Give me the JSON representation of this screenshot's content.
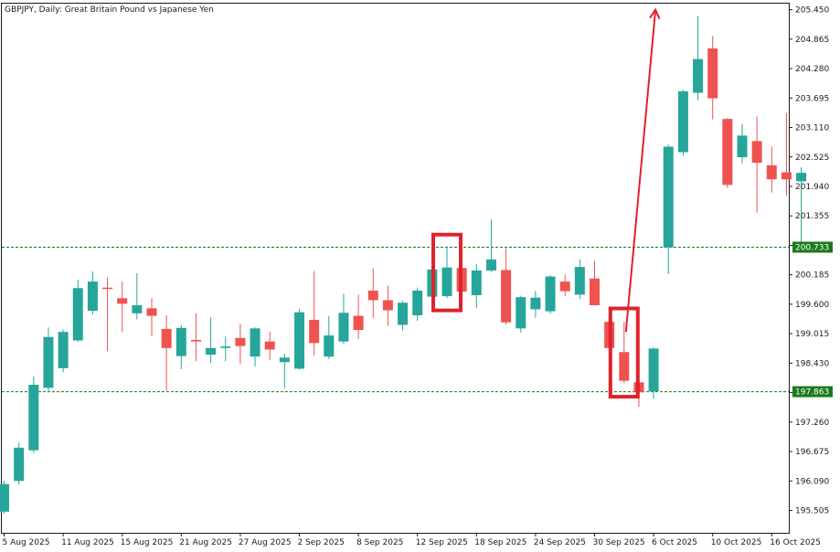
{
  "chart_title": "GBPJPY, Daily:  Great Britain Pound vs Japanese Yen",
  "chart_data": {
    "type": "candlestick",
    "symbol": "GBPJPY",
    "timeframe": "Daily",
    "description": "Great Britain Pound vs Japanese Yen",
    "ylim": [
      195.06,
      205.57
    ],
    "y_ticks": [
      "205.450",
      "204.865",
      "204.280",
      "203.695",
      "203.110",
      "202.525",
      "201.940",
      "201.355",
      "200.770",
      "200.185",
      "199.600",
      "199.015",
      "198.430",
      "197.845",
      "197.260",
      "196.675",
      "196.090",
      "195.505"
    ],
    "x_ticks": [
      {
        "label": "5 Aug 2025",
        "index": 0
      },
      {
        "label": "11 Aug 2025",
        "index": 4
      },
      {
        "label": "15 Aug 2025",
        "index": 8
      },
      {
        "label": "21 Aug 2025",
        "index": 12
      },
      {
        "label": "27 Aug 2025",
        "index": 16
      },
      {
        "label": "2 Sep 2025",
        "index": 20
      },
      {
        "label": "8 Sep 2025",
        "index": 24
      },
      {
        "label": "12 Sep 2025",
        "index": 28
      },
      {
        "label": "18 Sep 2025",
        "index": 32
      },
      {
        "label": "24 Sep 2025",
        "index": 36
      },
      {
        "label": "30 Sep 2025",
        "index": 40
      },
      {
        "label": "6 Oct 2025",
        "index": 44
      },
      {
        "label": "10 Oct 2025",
        "index": 48
      },
      {
        "label": "16 Oct 2025",
        "index": 52
      }
    ],
    "bull_color": "#26a69a",
    "bear_color": "#ef5350",
    "candles": [
      {
        "o": 195.48,
        "h": 196.09,
        "l": 195.44,
        "c": 196.03
      },
      {
        "o": 196.09,
        "h": 196.85,
        "l": 196.02,
        "c": 196.75
      },
      {
        "o": 196.7,
        "h": 198.16,
        "l": 196.65,
        "c": 198.0
      },
      {
        "o": 197.94,
        "h": 199.14,
        "l": 197.85,
        "c": 198.95
      },
      {
        "o": 198.33,
        "h": 199.1,
        "l": 198.25,
        "c": 199.05
      },
      {
        "o": 198.88,
        "h": 200.09,
        "l": 198.85,
        "c": 199.92
      },
      {
        "o": 199.47,
        "h": 200.25,
        "l": 199.4,
        "c": 200.05
      },
      {
        "o": 199.93,
        "h": 200.13,
        "l": 198.67,
        "c": 199.92
      },
      {
        "o": 199.72,
        "h": 200.05,
        "l": 199.05,
        "c": 199.61
      },
      {
        "o": 199.42,
        "h": 200.22,
        "l": 199.3,
        "c": 199.58
      },
      {
        "o": 199.52,
        "h": 199.72,
        "l": 198.97,
        "c": 199.37
      },
      {
        "o": 199.11,
        "h": 199.38,
        "l": 197.88,
        "c": 198.73
      },
      {
        "o": 198.57,
        "h": 199.19,
        "l": 198.31,
        "c": 199.13
      },
      {
        "o": 198.89,
        "h": 199.42,
        "l": 198.47,
        "c": 198.86
      },
      {
        "o": 198.6,
        "h": 199.34,
        "l": 198.43,
        "c": 198.73
      },
      {
        "o": 198.73,
        "h": 198.96,
        "l": 198.47,
        "c": 198.76
      },
      {
        "o": 198.93,
        "h": 199.21,
        "l": 198.42,
        "c": 198.77
      },
      {
        "o": 198.56,
        "h": 199.14,
        "l": 198.36,
        "c": 199.12
      },
      {
        "o": 198.86,
        "h": 199.06,
        "l": 198.49,
        "c": 198.7
      },
      {
        "o": 198.45,
        "h": 198.62,
        "l": 197.93,
        "c": 198.54
      },
      {
        "o": 198.32,
        "h": 199.51,
        "l": 198.3,
        "c": 199.44
      },
      {
        "o": 199.29,
        "h": 200.26,
        "l": 198.58,
        "c": 198.83
      },
      {
        "o": 198.56,
        "h": 199.37,
        "l": 198.51,
        "c": 198.98
      },
      {
        "o": 198.86,
        "h": 199.81,
        "l": 198.81,
        "c": 199.43
      },
      {
        "o": 199.37,
        "h": 199.79,
        "l": 198.91,
        "c": 199.09
      },
      {
        "o": 199.87,
        "h": 200.31,
        "l": 199.33,
        "c": 199.68
      },
      {
        "o": 199.68,
        "h": 199.97,
        "l": 199.17,
        "c": 199.48
      },
      {
        "o": 199.19,
        "h": 199.67,
        "l": 199.08,
        "c": 199.63
      },
      {
        "o": 199.38,
        "h": 199.93,
        "l": 199.27,
        "c": 199.87
      },
      {
        "o": 199.75,
        "h": 200.35,
        "l": 199.67,
        "c": 200.29
      },
      {
        "o": 199.76,
        "h": 200.74,
        "l": 199.72,
        "c": 200.33
      },
      {
        "o": 200.32,
        "h": 200.46,
        "l": 199.73,
        "c": 199.85
      },
      {
        "o": 199.78,
        "h": 200.4,
        "l": 199.52,
        "c": 200.27
      },
      {
        "o": 200.27,
        "h": 201.28,
        "l": 200.24,
        "c": 200.49
      },
      {
        "o": 200.28,
        "h": 200.71,
        "l": 199.19,
        "c": 199.24
      },
      {
        "o": 199.12,
        "h": 199.77,
        "l": 199.04,
        "c": 199.74
      },
      {
        "o": 199.5,
        "h": 199.87,
        "l": 199.33,
        "c": 199.73
      },
      {
        "o": 199.46,
        "h": 200.18,
        "l": 199.41,
        "c": 200.15
      },
      {
        "o": 200.05,
        "h": 200.19,
        "l": 199.76,
        "c": 199.86
      },
      {
        "o": 199.79,
        "h": 200.49,
        "l": 199.7,
        "c": 200.34
      },
      {
        "o": 200.11,
        "h": 200.46,
        "l": 199.58,
        "c": 199.58
      },
      {
        "o": 199.25,
        "h": 199.48,
        "l": 198.59,
        "c": 198.73
      },
      {
        "o": 198.65,
        "h": 199.25,
        "l": 198.03,
        "c": 198.08
      },
      {
        "o": 198.05,
        "h": 198.6,
        "l": 197.56,
        "c": 197.85
      },
      {
        "o": 197.87,
        "h": 198.75,
        "l": 197.72,
        "c": 198.72
      },
      {
        "o": 200.73,
        "h": 202.77,
        "l": 200.2,
        "c": 202.73
      },
      {
        "o": 202.62,
        "h": 203.86,
        "l": 202.55,
        "c": 203.83
      },
      {
        "o": 203.8,
        "h": 205.32,
        "l": 203.65,
        "c": 204.47
      },
      {
        "o": 204.68,
        "h": 204.93,
        "l": 203.27,
        "c": 203.69
      },
      {
        "o": 203.28,
        "h": 203.3,
        "l": 201.91,
        "c": 201.97
      },
      {
        "o": 202.52,
        "h": 203.18,
        "l": 202.4,
        "c": 202.95
      },
      {
        "o": 202.84,
        "h": 203.33,
        "l": 201.42,
        "c": 202.41
      },
      {
        "o": 202.36,
        "h": 202.73,
        "l": 201.82,
        "c": 202.08
      },
      {
        "o": 202.22,
        "h": 203.4,
        "l": 201.76,
        "c": 202.08
      },
      {
        "o": 202.04,
        "h": 202.32,
        "l": 200.76,
        "c": 202.21
      }
    ],
    "horizontal_lines": [
      {
        "value": 200.733,
        "label": "200.733",
        "color": "#1a7a1a"
      },
      {
        "value": 197.863,
        "label": "197.863",
        "color": "#1a7a1a"
      }
    ],
    "annotations": [
      {
        "type": "box",
        "candle_index": 30,
        "color": "#e0222c"
      },
      {
        "type": "box",
        "candle_index": 42,
        "color": "#e0222c"
      },
      {
        "type": "arrow",
        "from": {
          "index": 42,
          "value": 199.05
        },
        "to": {
          "index": 44,
          "value": 205.45
        },
        "color": "#e0222c"
      }
    ]
  }
}
